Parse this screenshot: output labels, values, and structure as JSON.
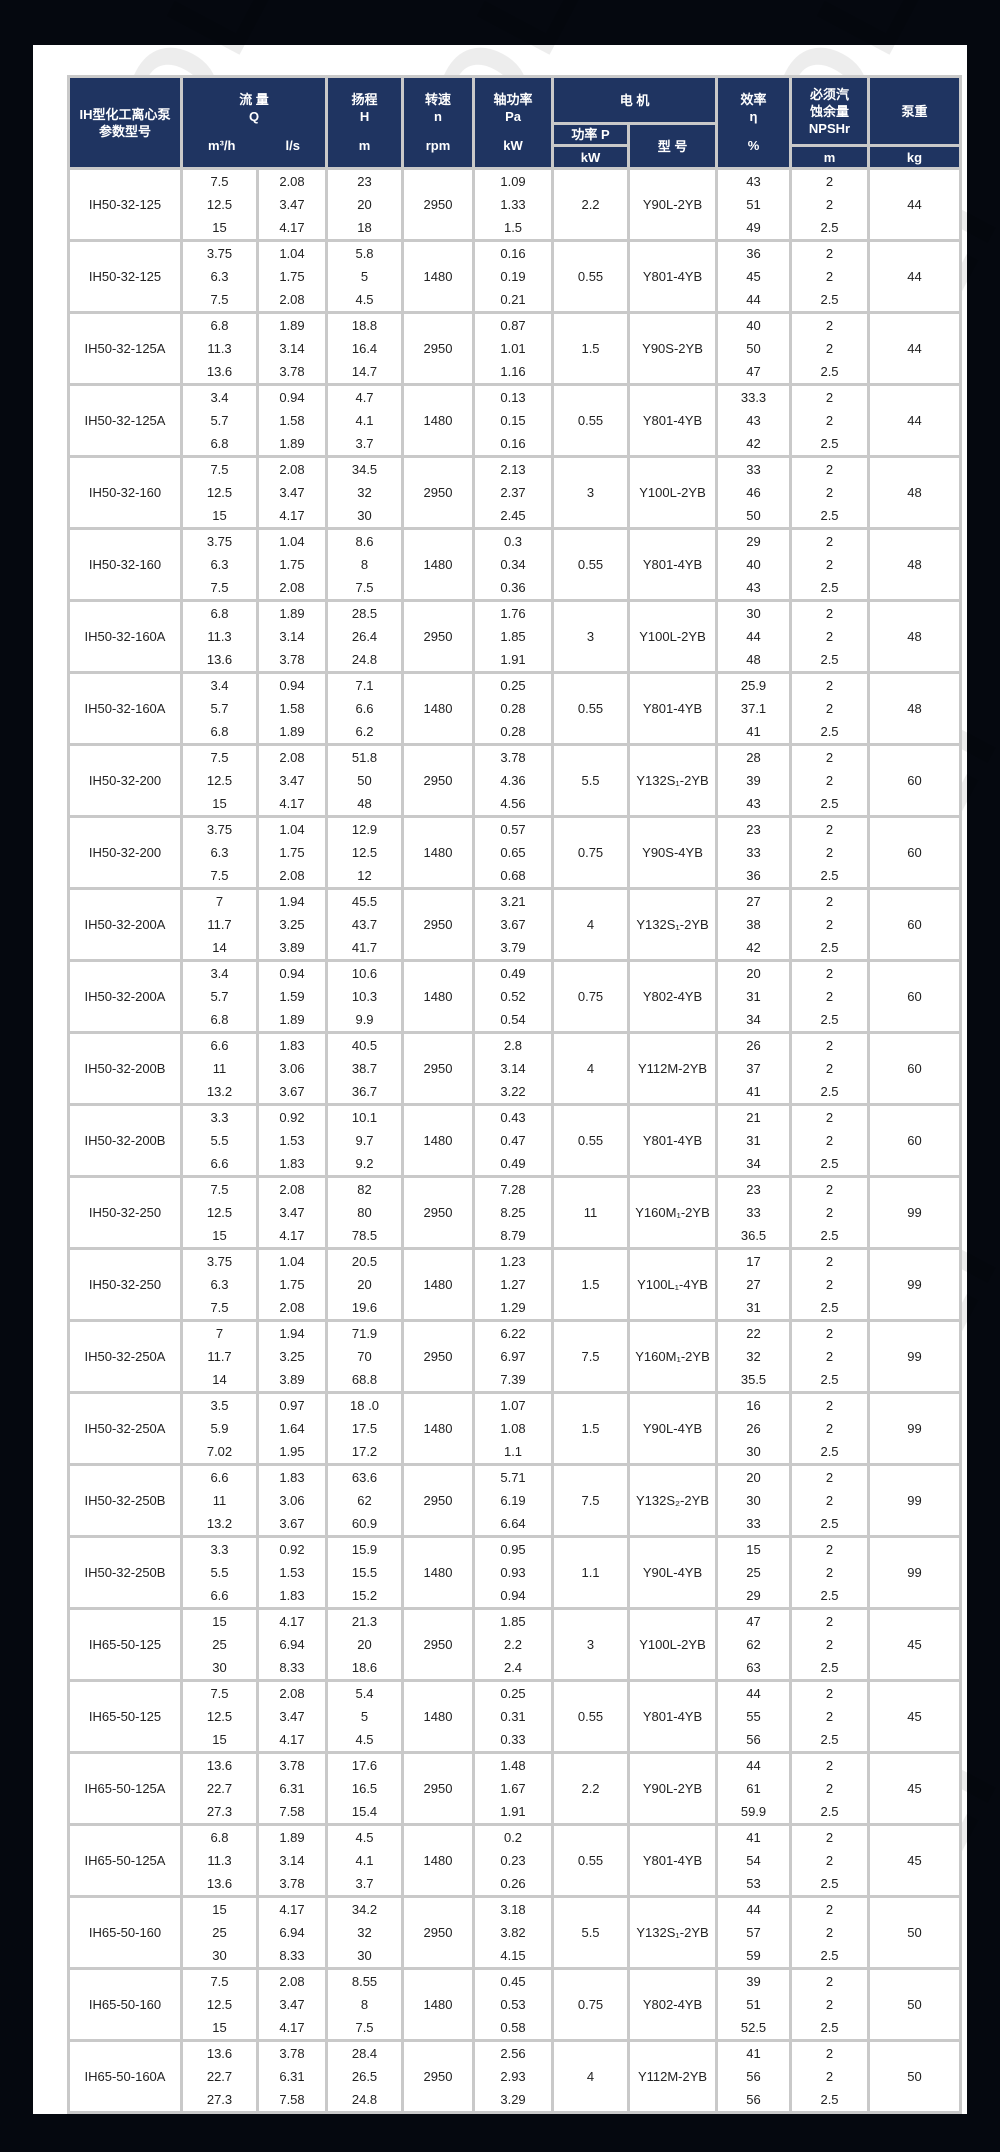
{
  "watermark": "AOLI",
  "colors": {
    "header_bg": "#1f3461",
    "grid": "#c9c9c9",
    "page_bg": "#05080f"
  },
  "header": {
    "model": "IH型化工离心泵参数型号",
    "flow": "流 量",
    "flow_sym": "Q",
    "flow_unit1": "m³/h",
    "flow_unit2": "l/s",
    "head": "扬程",
    "head_sym": "H",
    "head_unit": "m",
    "speed": "转速",
    "speed_sym": "n",
    "speed_unit": "rpm",
    "shaft": "轴功率",
    "shaft_sym": "Pa",
    "shaft_unit": "kW",
    "motor": "电 机",
    "motor_power": "功率 P",
    "motor_power_unit": "kW",
    "motor_type": "型 号",
    "eff": "效率",
    "eff_sym": "η",
    "eff_unit": "%",
    "npsh1": "必须汽",
    "npsh2": "蚀余量",
    "npsh_sym": "NPSHr",
    "npsh_unit": "m",
    "weight": "泵重",
    "weight_unit": "kg"
  },
  "rows": [
    {
      "model": "IH50-32-125",
      "q": [
        "7.5",
        "12.5",
        "15"
      ],
      "ls": [
        "2.08",
        "3.47",
        "4.17"
      ],
      "h": [
        "23",
        "20",
        "18"
      ],
      "n": "2950",
      "pa": [
        "1.09",
        "1.33",
        "1.5"
      ],
      "kw": "2.2",
      "motor": "Y90L-2YB",
      "eff": [
        "43",
        "51",
        "49"
      ],
      "npsh": [
        "2",
        "2",
        "2.5"
      ],
      "kg": "44"
    },
    {
      "model": "IH50-32-125",
      "q": [
        "3.75",
        "6.3",
        "7.5"
      ],
      "ls": [
        "1.04",
        "1.75",
        "2.08"
      ],
      "h": [
        "5.8",
        "5",
        "4.5"
      ],
      "n": "1480",
      "pa": [
        "0.16",
        "0.19",
        "0.21"
      ],
      "kw": "0.55",
      "motor": "Y801-4YB",
      "eff": [
        "36",
        "45",
        "44"
      ],
      "npsh": [
        "2",
        "2",
        "2.5"
      ],
      "kg": "44"
    },
    {
      "model": "IH50-32-125A",
      "q": [
        "6.8",
        "11.3",
        "13.6"
      ],
      "ls": [
        "1.89",
        "3.14",
        "3.78"
      ],
      "h": [
        "18.8",
        "16.4",
        "14.7"
      ],
      "n": "2950",
      "pa": [
        "0.87",
        "1.01",
        "1.16"
      ],
      "kw": "1.5",
      "motor": "Y90S-2YB",
      "eff": [
        "40",
        "50",
        "47"
      ],
      "npsh": [
        "2",
        "2",
        "2.5"
      ],
      "kg": "44"
    },
    {
      "model": "IH50-32-125A",
      "q": [
        "3.4",
        "5.7",
        "6.8"
      ],
      "ls": [
        "0.94",
        "1.58",
        "1.89"
      ],
      "h": [
        "4.7",
        "4.1",
        "3.7"
      ],
      "n": "1480",
      "pa": [
        "0.13",
        "0.15",
        "0.16"
      ],
      "kw": "0.55",
      "motor": "Y801-4YB",
      "eff": [
        "33.3",
        "43",
        "42"
      ],
      "npsh": [
        "2",
        "2",
        "2.5"
      ],
      "kg": "44"
    },
    {
      "model": "IH50-32-160",
      "q": [
        "7.5",
        "12.5",
        "15"
      ],
      "ls": [
        "2.08",
        "3.47",
        "4.17"
      ],
      "h": [
        "34.5",
        "32",
        "30"
      ],
      "n": "2950",
      "pa": [
        "2.13",
        "2.37",
        "2.45"
      ],
      "kw": "3",
      "motor": "Y100L-2YB",
      "eff": [
        "33",
        "46",
        "50"
      ],
      "npsh": [
        "2",
        "2",
        "2.5"
      ],
      "kg": "48"
    },
    {
      "model": "IH50-32-160",
      "q": [
        "3.75",
        "6.3",
        "7.5"
      ],
      "ls": [
        "1.04",
        "1.75",
        "2.08"
      ],
      "h": [
        "8.6",
        "8",
        "7.5"
      ],
      "n": "1480",
      "pa": [
        "0.3",
        "0.34",
        "0.36"
      ],
      "kw": "0.55",
      "motor": "Y801-4YB",
      "eff": [
        "29",
        "40",
        "43"
      ],
      "npsh": [
        "2",
        "2",
        "2.5"
      ],
      "kg": "48"
    },
    {
      "model": "IH50-32-160A",
      "q": [
        "6.8",
        "11.3",
        "13.6"
      ],
      "ls": [
        "1.89",
        "3.14",
        "3.78"
      ],
      "h": [
        "28.5",
        "26.4",
        "24.8"
      ],
      "n": "2950",
      "pa": [
        "1.76",
        "1.85",
        "1.91"
      ],
      "kw": "3",
      "motor": "Y100L-2YB",
      "eff": [
        "30",
        "44",
        "48"
      ],
      "npsh": [
        "2",
        "2",
        "2.5"
      ],
      "kg": "48"
    },
    {
      "model": "IH50-32-160A",
      "q": [
        "3.4",
        "5.7",
        "6.8"
      ],
      "ls": [
        "0.94",
        "1.58",
        "1.89"
      ],
      "h": [
        "7.1",
        "6.6",
        "6.2"
      ],
      "n": "1480",
      "pa": [
        "0.25",
        "0.28",
        "0.28"
      ],
      "kw": "0.55",
      "motor": "Y801-4YB",
      "eff": [
        "25.9",
        "37.1",
        "41"
      ],
      "npsh": [
        "2",
        "2",
        "2.5"
      ],
      "kg": "48"
    },
    {
      "model": "IH50-32-200",
      "q": [
        "7.5",
        "12.5",
        "15"
      ],
      "ls": [
        "2.08",
        "3.47",
        "4.17"
      ],
      "h": [
        "51.8",
        "50",
        "48"
      ],
      "n": "2950",
      "pa": [
        "3.78",
        "4.36",
        "4.56"
      ],
      "kw": "5.5",
      "motor": "Y132S₁-2YB",
      "eff": [
        "28",
        "39",
        "43"
      ],
      "npsh": [
        "2",
        "2",
        "2.5"
      ],
      "kg": "60"
    },
    {
      "model": "IH50-32-200",
      "q": [
        "3.75",
        "6.3",
        "7.5"
      ],
      "ls": [
        "1.04",
        "1.75",
        "2.08"
      ],
      "h": [
        "12.9",
        "12.5",
        "12"
      ],
      "n": "1480",
      "pa": [
        "0.57",
        "0.65",
        "0.68"
      ],
      "kw": "0.75",
      "motor": "Y90S-4YB",
      "eff": [
        "23",
        "33",
        "36"
      ],
      "npsh": [
        "2",
        "2",
        "2.5"
      ],
      "kg": "60"
    },
    {
      "model": "IH50-32-200A",
      "q": [
        "7",
        "11.7",
        "14"
      ],
      "ls": [
        "1.94",
        "3.25",
        "3.89"
      ],
      "h": [
        "45.5",
        "43.7",
        "41.7"
      ],
      "n": "2950",
      "pa": [
        "3.21",
        "3.67",
        "3.79"
      ],
      "kw": "4",
      "motor": "Y132S₁-2YB",
      "eff": [
        "27",
        "38",
        "42"
      ],
      "npsh": [
        "2",
        "2",
        "2.5"
      ],
      "kg": "60"
    },
    {
      "model": "IH50-32-200A",
      "q": [
        "3.4",
        "5.7",
        "6.8"
      ],
      "ls": [
        "0.94",
        "1.59",
        "1.89"
      ],
      "h": [
        "10.6",
        "10.3",
        "9.9"
      ],
      "n": "1480",
      "pa": [
        "0.49",
        "0.52",
        "0.54"
      ],
      "kw": "0.75",
      "motor": "Y802-4YB",
      "eff": [
        "20",
        "31",
        "34"
      ],
      "npsh": [
        "2",
        "2",
        "2.5"
      ],
      "kg": "60"
    },
    {
      "model": "IH50-32-200B",
      "q": [
        "6.6",
        "11",
        "13.2"
      ],
      "ls": [
        "1.83",
        "3.06",
        "3.67"
      ],
      "h": [
        "40.5",
        "38.7",
        "36.7"
      ],
      "n": "2950",
      "pa": [
        "2.8",
        "3.14",
        "3.22"
      ],
      "kw": "4",
      "motor": "Y112M-2YB",
      "eff": [
        "26",
        "37",
        "41"
      ],
      "npsh": [
        "2",
        "2",
        "2.5"
      ],
      "kg": "60"
    },
    {
      "model": "IH50-32-200B",
      "q": [
        "3.3",
        "5.5",
        "6.6"
      ],
      "ls": [
        "0.92",
        "1.53",
        "1.83"
      ],
      "h": [
        "10.1",
        "9.7",
        "9.2"
      ],
      "n": "1480",
      "pa": [
        "0.43",
        "0.47",
        "0.49"
      ],
      "kw": "0.55",
      "motor": "Y801-4YB",
      "eff": [
        "21",
        "31",
        "34"
      ],
      "npsh": [
        "2",
        "2",
        "2.5"
      ],
      "kg": "60"
    },
    {
      "model": "IH50-32-250",
      "q": [
        "7.5",
        "12.5",
        "15"
      ],
      "ls": [
        "2.08",
        "3.47",
        "4.17"
      ],
      "h": [
        "82",
        "80",
        "78.5"
      ],
      "n": "2950",
      "pa": [
        "7.28",
        "8.25",
        "8.79"
      ],
      "kw": "11",
      "motor": "Y160M₁-2YB",
      "eff": [
        "23",
        "33",
        "36.5"
      ],
      "npsh": [
        "2",
        "2",
        "2.5"
      ],
      "kg": "99"
    },
    {
      "model": "IH50-32-250",
      "q": [
        "3.75",
        "6.3",
        "7.5"
      ],
      "ls": [
        "1.04",
        "1.75",
        "2.08"
      ],
      "h": [
        "20.5",
        "20",
        "19.6"
      ],
      "n": "1480",
      "pa": [
        "1.23",
        "1.27",
        "1.29"
      ],
      "kw": "1.5",
      "motor": "Y100L₁-4YB",
      "eff": [
        "17",
        "27",
        "31"
      ],
      "npsh": [
        "2",
        "2",
        "2.5"
      ],
      "kg": "99"
    },
    {
      "model": "IH50-32-250A",
      "q": [
        "7",
        "11.7",
        "14"
      ],
      "ls": [
        "1.94",
        "3.25",
        "3.89"
      ],
      "h": [
        "71.9",
        "70",
        "68.8"
      ],
      "n": "2950",
      "pa": [
        "6.22",
        "6.97",
        "7.39"
      ],
      "kw": "7.5",
      "motor": "Y160M₁-2YB",
      "eff": [
        "22",
        "32",
        "35.5"
      ],
      "npsh": [
        "2",
        "2",
        "2.5"
      ],
      "kg": "99"
    },
    {
      "model": "IH50-32-250A",
      "q": [
        "3.5",
        "5.9",
        "7.02"
      ],
      "ls": [
        "0.97",
        "1.64",
        "1.95"
      ],
      "h": [
        "18 .0",
        "17.5",
        "17.2"
      ],
      "n": "1480",
      "pa": [
        "1.07",
        "1.08",
        "1.1"
      ],
      "kw": "1.5",
      "motor": "Y90L-4YB",
      "eff": [
        "16",
        "26",
        "30"
      ],
      "npsh": [
        "2",
        "2",
        "2.5"
      ],
      "kg": "99"
    },
    {
      "model": "IH50-32-250B",
      "q": [
        "6.6",
        "11",
        "13.2"
      ],
      "ls": [
        "1.83",
        "3.06",
        "3.67"
      ],
      "h": [
        "63.6",
        "62",
        "60.9"
      ],
      "n": "2950",
      "pa": [
        "5.71",
        "6.19",
        "6.64"
      ],
      "kw": "7.5",
      "motor": "Y132S₂-2YB",
      "eff": [
        "20",
        "30",
        "33"
      ],
      "npsh": [
        "2",
        "2",
        "2.5"
      ],
      "kg": "99"
    },
    {
      "model": "IH50-32-250B",
      "q": [
        "3.3",
        "5.5",
        "6.6"
      ],
      "ls": [
        "0.92",
        "1.53",
        "1.83"
      ],
      "h": [
        "15.9",
        "15.5",
        "15.2"
      ],
      "n": "1480",
      "pa": [
        "0.95",
        "0.93",
        "0.94"
      ],
      "kw": "1.1",
      "motor": "Y90L-4YB",
      "eff": [
        "15",
        "25",
        "29"
      ],
      "npsh": [
        "2",
        "2",
        "2.5"
      ],
      "kg": "99"
    },
    {
      "model": "IH65-50-125",
      "q": [
        "15",
        "25",
        "30"
      ],
      "ls": [
        "4.17",
        "6.94",
        "8.33"
      ],
      "h": [
        "21.3",
        "20",
        "18.6"
      ],
      "n": "2950",
      "pa": [
        "1.85",
        "2.2",
        "2.4"
      ],
      "kw": "3",
      "motor": "Y100L-2YB",
      "eff": [
        "47",
        "62",
        "63"
      ],
      "npsh": [
        "2",
        "2",
        "2.5"
      ],
      "kg": "45"
    },
    {
      "model": "IH65-50-125",
      "q": [
        "7.5",
        "12.5",
        "15"
      ],
      "ls": [
        "2.08",
        "3.47",
        "4.17"
      ],
      "h": [
        "5.4",
        "5",
        "4.5"
      ],
      "n": "1480",
      "pa": [
        "0.25",
        "0.31",
        "0.33"
      ],
      "kw": "0.55",
      "motor": "Y801-4YB",
      "eff": [
        "44",
        "55",
        "56"
      ],
      "npsh": [
        "2",
        "2",
        "2.5"
      ],
      "kg": "45"
    },
    {
      "model": "IH65-50-125A",
      "q": [
        "13.6",
        "22.7",
        "27.3"
      ],
      "ls": [
        "3.78",
        "6.31",
        "7.58"
      ],
      "h": [
        "17.6",
        "16.5",
        "15.4"
      ],
      "n": "2950",
      "pa": [
        "1.48",
        "1.67",
        "1.91"
      ],
      "kw": "2.2",
      "motor": "Y90L-2YB",
      "eff": [
        "44",
        "61",
        "59.9"
      ],
      "npsh": [
        "2",
        "2",
        "2.5"
      ],
      "kg": "45"
    },
    {
      "model": "IH65-50-125A",
      "q": [
        "6.8",
        "11.3",
        "13.6"
      ],
      "ls": [
        "1.89",
        "3.14",
        "3.78"
      ],
      "h": [
        "4.5",
        "4.1",
        "3.7"
      ],
      "n": "1480",
      "pa": [
        "0.2",
        "0.23",
        "0.26"
      ],
      "kw": "0.55",
      "motor": "Y801-4YB",
      "eff": [
        "41",
        "54",
        "53"
      ],
      "npsh": [
        "2",
        "2",
        "2.5"
      ],
      "kg": "45"
    },
    {
      "model": "IH65-50-160",
      "q": [
        "15",
        "25",
        "30"
      ],
      "ls": [
        "4.17",
        "6.94",
        "8.33"
      ],
      "h": [
        "34.2",
        "32",
        "30"
      ],
      "n": "2950",
      "pa": [
        "3.18",
        "3.82",
        "4.15"
      ],
      "kw": "5.5",
      "motor": "Y132S₁-2YB",
      "eff": [
        "44",
        "57",
        "59"
      ],
      "npsh": [
        "2",
        "2",
        "2.5"
      ],
      "kg": "50"
    },
    {
      "model": "IH65-50-160",
      "q": [
        "7.5",
        "12.5",
        "15"
      ],
      "ls": [
        "2.08",
        "3.47",
        "4.17"
      ],
      "h": [
        "8.55",
        "8",
        "7.5"
      ],
      "n": "1480",
      "pa": [
        "0.45",
        "0.53",
        "0.58"
      ],
      "kw": "0.75",
      "motor": "Y802-4YB",
      "eff": [
        "39",
        "51",
        "52.5"
      ],
      "npsh": [
        "2",
        "2",
        "2.5"
      ],
      "kg": "50"
    },
    {
      "model": "IH65-50-160A",
      "q": [
        "13.6",
        "22.7",
        "27.3"
      ],
      "ls": [
        "3.78",
        "6.31",
        "7.58"
      ],
      "h": [
        "28.4",
        "26.5",
        "24.8"
      ],
      "n": "2950",
      "pa": [
        "2.56",
        "2.93",
        "3.29"
      ],
      "kw": "4",
      "motor": "Y112M-2YB",
      "eff": [
        "41",
        "56",
        "56"
      ],
      "npsh": [
        "2",
        "2",
        "2.5"
      ],
      "kg": "50"
    }
  ]
}
